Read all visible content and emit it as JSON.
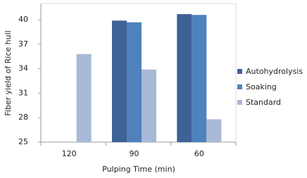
{
  "chart_data": {
    "type": "bar",
    "y_label": "Fiber yield of Rice hull",
    "x_label": "Pulping Time (min)",
    "categories": [
      "120",
      "90",
      "60"
    ],
    "series": [
      {
        "name": "Autohydrolysis",
        "color": "#3e6196",
        "values": [
          null,
          39.9,
          40.7
        ]
      },
      {
        "name": "Soaking",
        "color": "#4f81bd",
        "values": [
          null,
          39.7,
          40.6
        ]
      },
      {
        "name": "Standard",
        "color": "#a9b9d8",
        "values": [
          35.8,
          33.9,
          27.8
        ]
      }
    ],
    "ylim": [
      25,
      42
    ],
    "yticks": [
      25,
      28,
      31,
      34,
      37,
      40
    ],
    "grid": false,
    "legend": "right"
  }
}
